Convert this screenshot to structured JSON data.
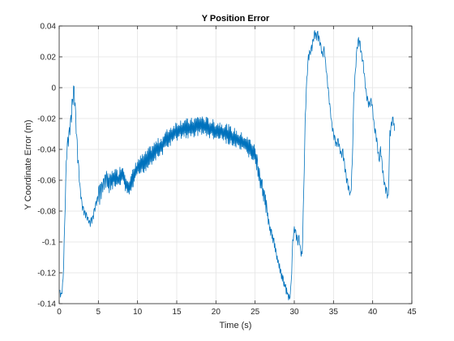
{
  "chart_data": {
    "type": "line",
    "title": "Y Position Error",
    "xlabel": "Time (s)",
    "ylabel": "Y Coordinate Error (m)",
    "xlim": [
      0,
      45
    ],
    "ylim": [
      -0.14,
      0.04
    ],
    "xticks": [
      0,
      5,
      10,
      15,
      20,
      25,
      30,
      35,
      40,
      45
    ],
    "yticks": [
      -0.14,
      -0.12,
      -0.1,
      -0.08,
      -0.06,
      -0.04,
      -0.02,
      0,
      0.02,
      0.04
    ],
    "xtick_labels": [
      "0",
      "5",
      "10",
      "15",
      "20",
      "25",
      "30",
      "35",
      "40",
      "45"
    ],
    "ytick_labels": [
      "-0.14",
      "-0.12",
      "-0.1",
      "-0.08",
      "-0.06",
      "-0.04",
      "-0.02",
      "0",
      "0.02",
      "0.04"
    ],
    "grid": true,
    "series": [
      {
        "color": "#0072BD",
        "x": [
          0.1,
          0.3,
          0.5,
          0.7,
          0.9,
          1.1,
          1.3,
          1.5,
          1.7,
          1.9,
          2.1,
          2.3,
          2.5,
          2.7,
          2.9,
          3.1,
          3.3,
          3.5,
          3.7,
          3.9,
          4.1,
          4.3,
          4.5,
          4.7,
          4.9,
          5.1,
          5.3,
          5.5,
          5.7,
          5.9,
          6.1,
          6.5,
          7.0,
          7.5,
          8.0,
          8.5,
          9.0,
          9.5,
          10.0,
          10.5,
          11.0,
          11.5,
          12.0,
          12.5,
          13.0,
          13.5,
          14.0,
          14.5,
          15.0,
          15.5,
          16.0,
          16.5,
          17.0,
          17.5,
          18.0,
          18.5,
          19.0,
          19.5,
          20.0,
          20.5,
          21.0,
          21.5,
          22.0,
          22.5,
          23.0,
          23.5,
          24.0,
          24.5,
          25.0,
          25.3,
          25.6,
          25.9,
          26.2,
          26.5,
          26.8,
          27.1,
          27.4,
          27.7,
          28.0,
          28.3,
          28.6,
          28.9,
          29.2,
          29.4,
          29.6,
          29.8,
          30.0,
          30.2,
          30.4,
          30.6,
          30.8,
          31.0,
          31.2,
          31.4,
          31.6,
          31.8,
          32.0,
          32.2,
          32.4,
          32.6,
          32.8,
          33.0,
          33.2,
          33.4,
          33.6,
          33.8,
          34.0,
          34.2,
          34.4,
          34.6,
          34.8,
          35.0,
          35.2,
          35.4,
          35.6,
          35.8,
          36.0,
          36.2,
          36.4,
          36.6,
          36.8,
          37.0,
          37.2,
          37.4,
          37.6,
          37.8,
          38.0,
          38.2,
          38.4,
          38.6,
          38.8,
          39.0,
          39.2,
          39.4,
          39.6,
          39.8,
          40.0,
          40.2,
          40.4,
          40.6,
          40.8,
          41.0,
          41.2,
          41.4,
          41.6,
          41.8,
          42.0,
          42.2,
          42.4,
          42.6,
          42.8
        ],
        "y": [
          -0.133,
          -0.135,
          -0.125,
          -0.09,
          -0.05,
          -0.035,
          -0.03,
          -0.02,
          -0.01,
          -0.002,
          -0.02,
          -0.04,
          -0.055,
          -0.068,
          -0.075,
          -0.08,
          -0.082,
          -0.084,
          -0.086,
          -0.088,
          -0.087,
          -0.085,
          -0.08,
          -0.075,
          -0.072,
          -0.07,
          -0.068,
          -0.065,
          -0.062,
          -0.062,
          -0.06,
          -0.062,
          -0.058,
          -0.06,
          -0.055,
          -0.062,
          -0.065,
          -0.058,
          -0.052,
          -0.05,
          -0.048,
          -0.045,
          -0.042,
          -0.04,
          -0.038,
          -0.035,
          -0.032,
          -0.03,
          -0.028,
          -0.027,
          -0.026,
          -0.027,
          -0.026,
          -0.025,
          -0.024,
          -0.025,
          -0.026,
          -0.027,
          -0.028,
          -0.028,
          -0.029,
          -0.03,
          -0.032,
          -0.033,
          -0.035,
          -0.036,
          -0.038,
          -0.04,
          -0.044,
          -0.05,
          -0.06,
          -0.065,
          -0.072,
          -0.08,
          -0.09,
          -0.095,
          -0.1,
          -0.108,
          -0.115,
          -0.12,
          -0.125,
          -0.13,
          -0.135,
          -0.138,
          -0.128,
          -0.1,
          -0.092,
          -0.095,
          -0.1,
          -0.098,
          -0.106,
          -0.11,
          -0.07,
          -0.02,
          0.005,
          0.02,
          0.022,
          0.025,
          0.03,
          0.035,
          0.033,
          0.034,
          0.03,
          0.025,
          0.02,
          0.025,
          0.015,
          0.005,
          -0.005,
          -0.015,
          -0.025,
          -0.03,
          -0.035,
          -0.038,
          -0.035,
          -0.04,
          -0.045,
          -0.042,
          -0.05,
          -0.058,
          -0.062,
          -0.068,
          -0.07,
          -0.05,
          -0.005,
          0.01,
          0.025,
          0.03,
          0.028,
          0.02,
          0.015,
          0.005,
          -0.005,
          -0.01,
          -0.012,
          -0.008,
          -0.015,
          -0.025,
          -0.03,
          -0.038,
          -0.048,
          -0.04,
          -0.05,
          -0.06,
          -0.065,
          -0.068,
          -0.072,
          -0.03,
          -0.025,
          -0.02,
          -0.028
        ]
      }
    ]
  }
}
